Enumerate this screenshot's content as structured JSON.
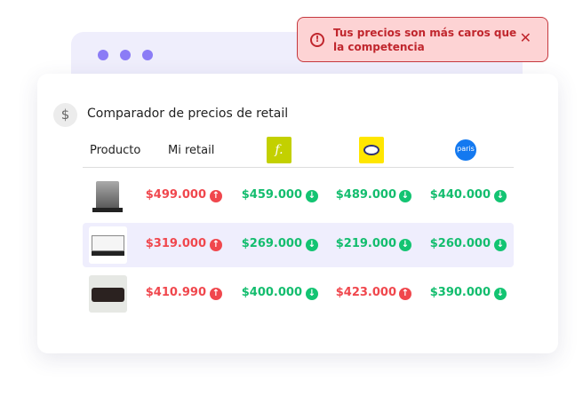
{
  "alert": {
    "message": "Tus precios son más caros que la competencia",
    "icon": "alert-circle-icon",
    "close": "✕"
  },
  "title": "Comparador de precios de retail",
  "title_icon": "dollar-icon",
  "columns": {
    "product": "Producto",
    "mine": "Mi retail",
    "c1": "falabella-logo",
    "c2": "mercadolibre-logo",
    "c3": "paris-logo"
  },
  "logo_text": {
    "c1": "f.",
    "c3": "paris"
  },
  "colors": {
    "up": "#f0474d",
    "down": "#13bd6e",
    "accent": "#8b7cf6"
  },
  "rows": [
    {
      "product": "cafetera",
      "prices": [
        {
          "v": "$499.000",
          "dir": "up"
        },
        {
          "v": "$459.000",
          "dir": "down"
        },
        {
          "v": "$489.000",
          "dir": "down"
        },
        {
          "v": "$440.000",
          "dir": "down"
        }
      ]
    },
    {
      "product": "máquina de coser",
      "prices": [
        {
          "v": "$319.000",
          "dir": "up"
        },
        {
          "v": "$269.000",
          "dir": "down"
        },
        {
          "v": "$219.000",
          "dir": "down"
        },
        {
          "v": "$260.000",
          "dir": "down"
        }
      ]
    },
    {
      "product": "sofá",
      "prices": [
        {
          "v": "$410.990",
          "dir": "up"
        },
        {
          "v": "$400.000",
          "dir": "down"
        },
        {
          "v": "$423.000",
          "dir": "up"
        },
        {
          "v": "$390.000",
          "dir": "down"
        }
      ]
    }
  ]
}
